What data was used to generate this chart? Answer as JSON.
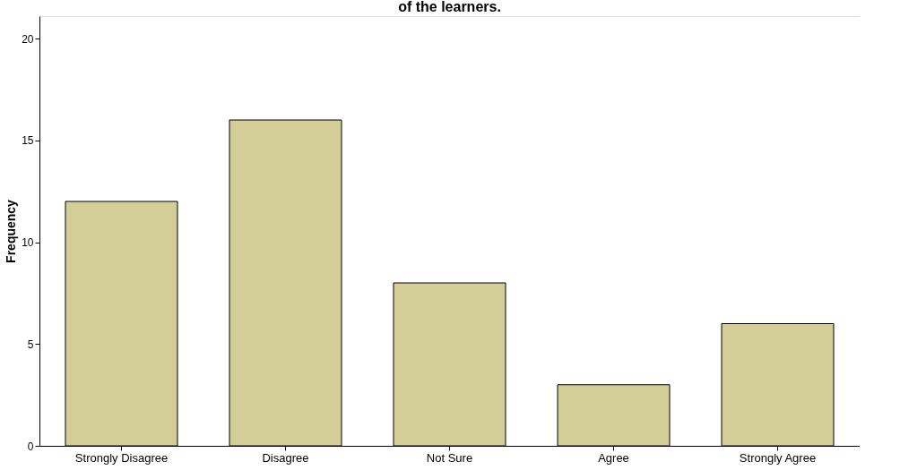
{
  "chart_data": {
    "type": "bar",
    "title": "of the learners.",
    "ylabel": "Frequency",
    "categories": [
      "Strongly Disagree",
      "Disagree",
      "Not Sure",
      "Agree",
      "Strongly Agree"
    ],
    "values": [
      12,
      16,
      8,
      3,
      6
    ],
    "color": "#d3ce97",
    "ylim": [
      0,
      21.1
    ],
    "yticks": [
      0,
      5,
      10,
      15,
      20
    ],
    "grid": false
  }
}
